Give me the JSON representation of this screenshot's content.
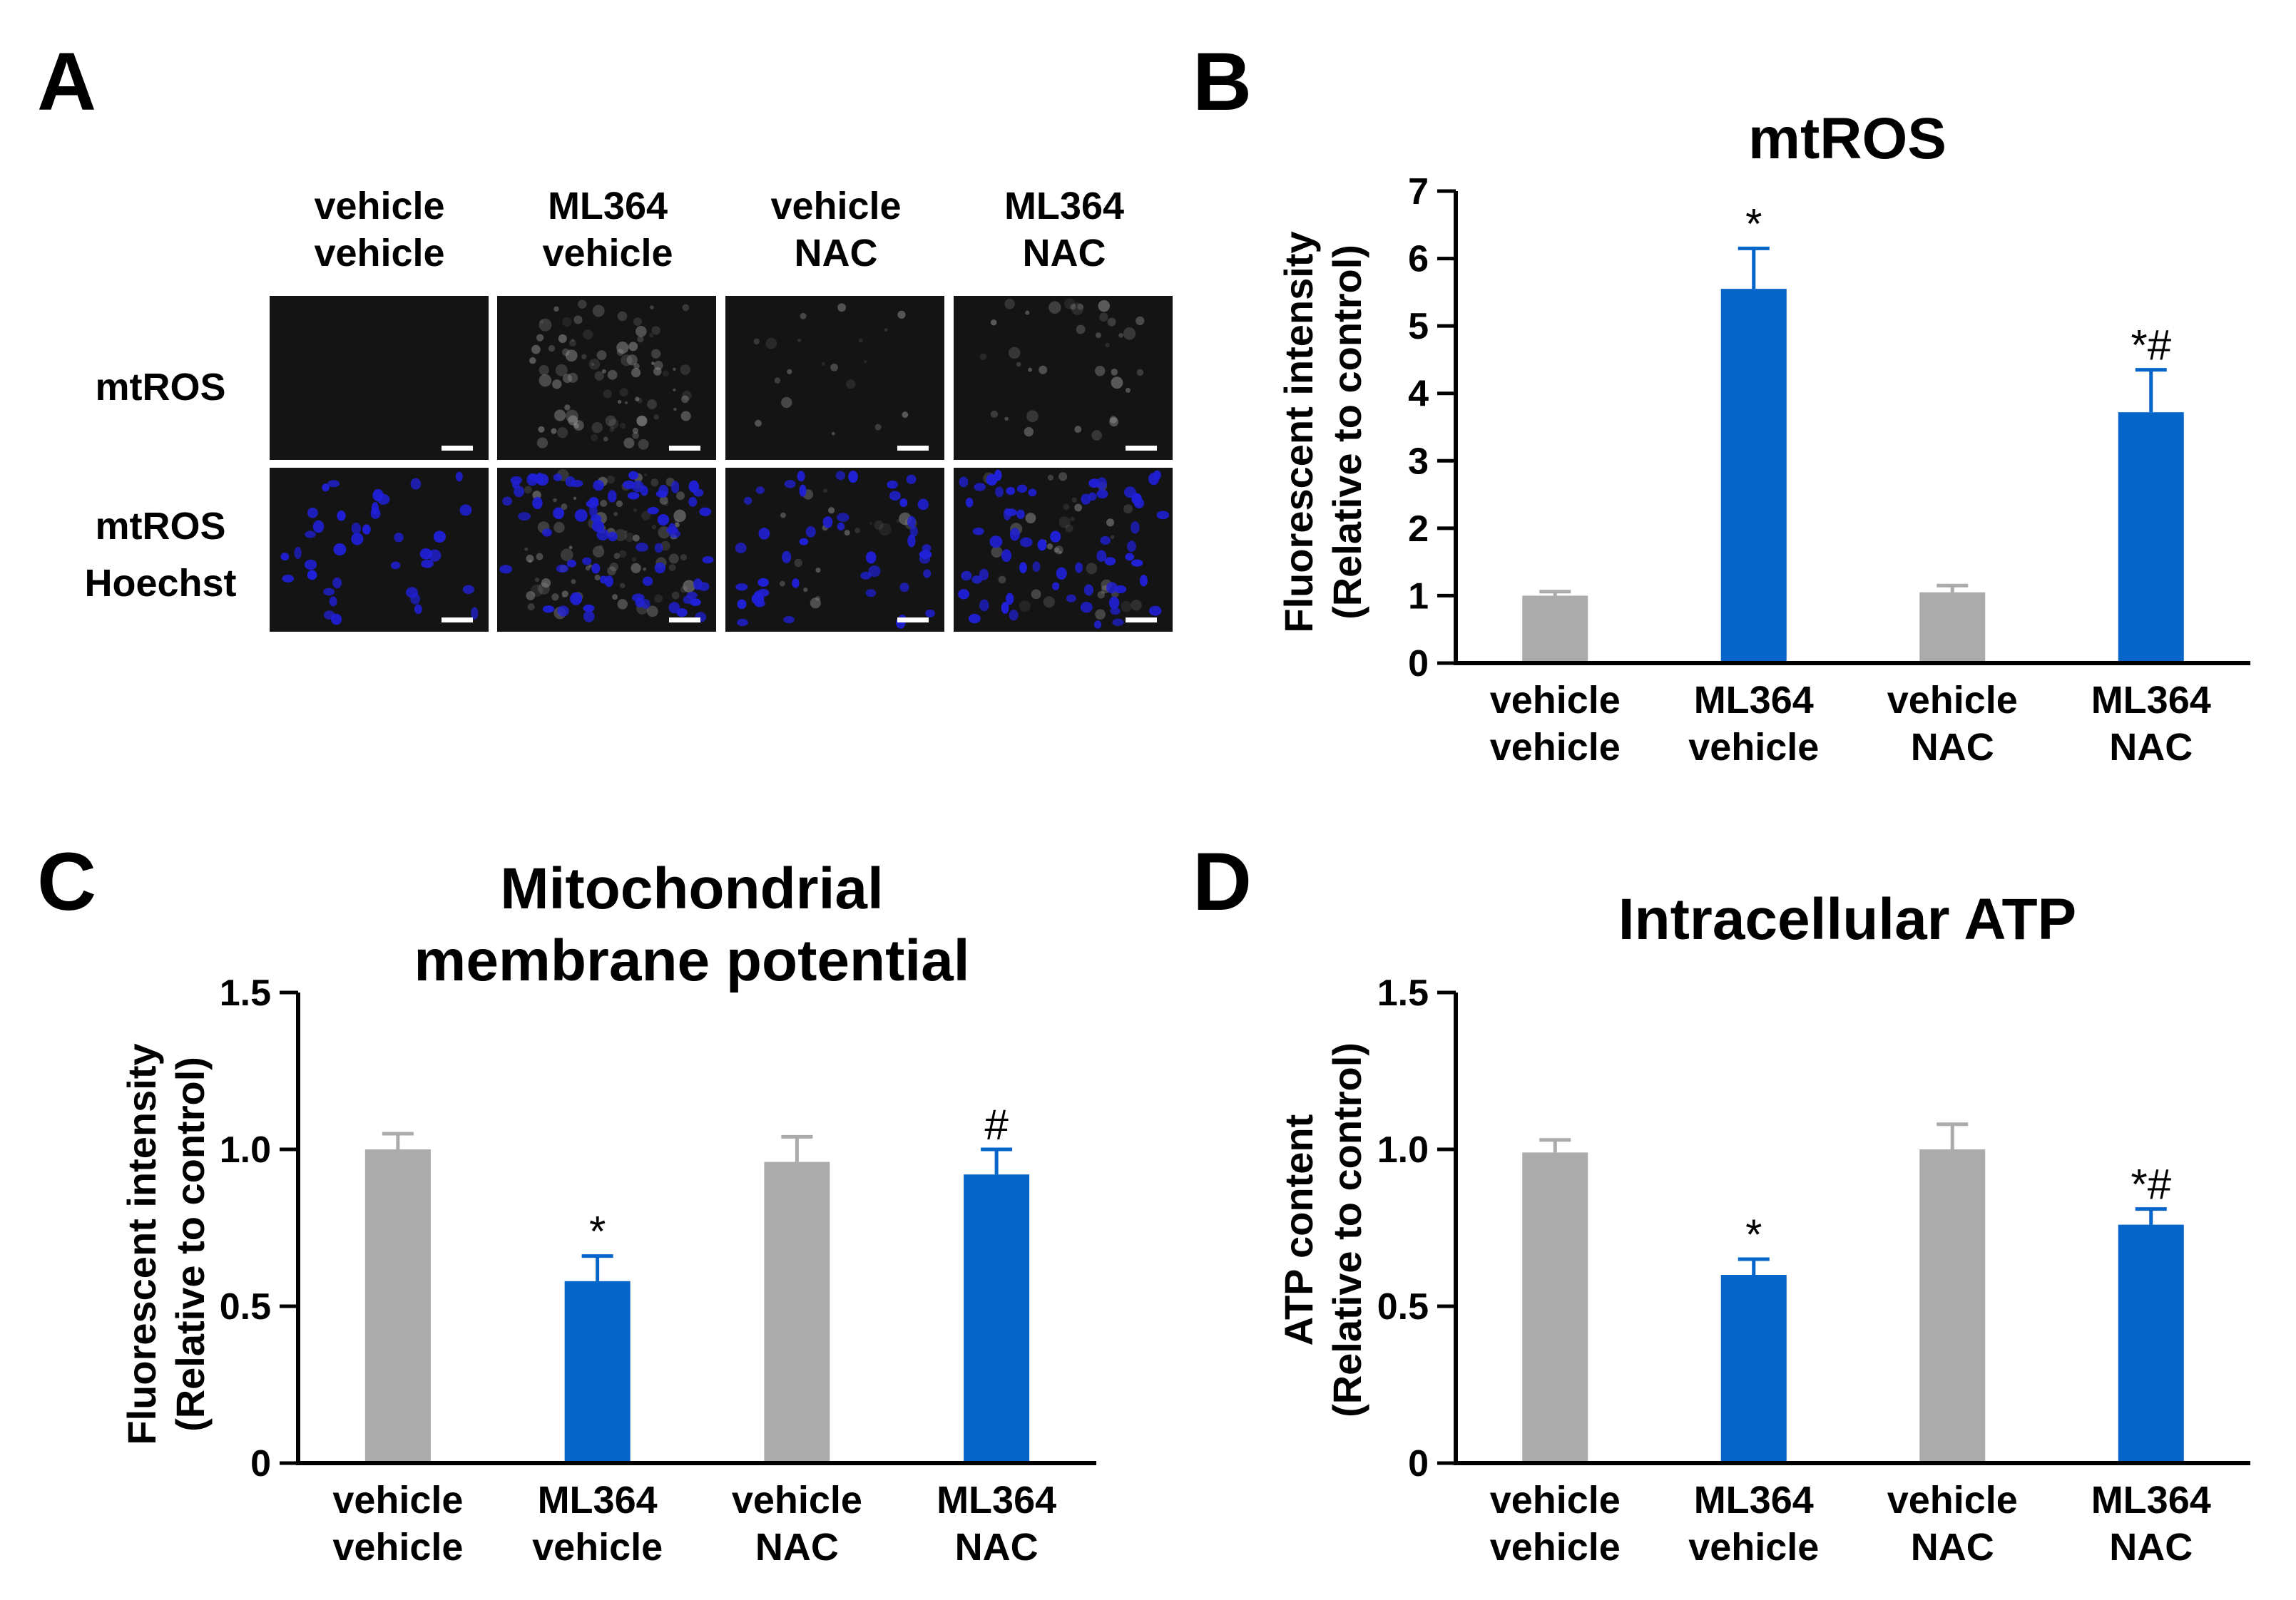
{
  "panel_a": {
    "letter": "A",
    "columns": [
      {
        "line1": "vehicle",
        "line2": "vehicle"
      },
      {
        "line1": "ML364",
        "line2": "vehicle"
      },
      {
        "line1": "vehicle",
        "line2": "NAC"
      },
      {
        "line1": "ML364",
        "line2": "NAC"
      }
    ],
    "rows": [
      {
        "line1": "mtROS",
        "line2": ""
      },
      {
        "line1": "mtROS",
        "line2": "Hoechst"
      }
    ],
    "colors": {
      "tile_bg": "#141414",
      "nuclei": "#2020d8",
      "mtros_signal": "#9a9a9a",
      "scale_bar": "#ffffff"
    }
  },
  "chart_data": [
    {
      "letter": "B",
      "type": "bar",
      "title_lines": [
        "mtROS"
      ],
      "ylabel_lines": [
        "Fluorescent intensity",
        "(Relative to control)"
      ],
      "xlabel": "",
      "categories": [
        [
          "vehicle",
          "vehicle"
        ],
        [
          "ML364",
          "vehicle"
        ],
        [
          "vehicle",
          "NAC"
        ],
        [
          "ML364",
          "NAC"
        ]
      ],
      "values": [
        1.0,
        5.55,
        1.05,
        3.72
      ],
      "errors": [
        0.06,
        0.6,
        0.1,
        0.63
      ],
      "annotations": [
        "",
        "*",
        "",
        "*#"
      ],
      "ylim": [
        0,
        7
      ],
      "yticks": [
        0,
        1,
        2,
        3,
        4,
        5,
        6,
        7
      ],
      "ytick_labels": [
        "0",
        "1",
        "2",
        "3",
        "4",
        "5",
        "6",
        "7"
      ],
      "grid": false,
      "bar_colors": [
        "#ababab",
        "#0565c8",
        "#ababab",
        "#0565c8"
      ]
    },
    {
      "letter": "C",
      "type": "bar",
      "title_lines": [
        "Mitochondrial",
        "membrane potential"
      ],
      "ylabel_lines": [
        "Fluorescent intensity",
        "(Relative to control)"
      ],
      "xlabel": "",
      "categories": [
        [
          "vehicle",
          "vehicle"
        ],
        [
          "ML364",
          "vehicle"
        ],
        [
          "vehicle",
          "NAC"
        ],
        [
          "ML364",
          "NAC"
        ]
      ],
      "values": [
        1.0,
        0.58,
        0.96,
        0.92
      ],
      "errors": [
        0.05,
        0.08,
        0.08,
        0.08
      ],
      "annotations": [
        "",
        "*",
        "",
        "#"
      ],
      "ylim": [
        0,
        1.5
      ],
      "yticks": [
        0,
        0.5,
        1.0,
        1.5
      ],
      "ytick_labels": [
        "0",
        "0.5",
        "1.0",
        "1.5"
      ],
      "grid": false,
      "bar_colors": [
        "#ababab",
        "#0565c8",
        "#ababab",
        "#0565c8"
      ]
    },
    {
      "letter": "D",
      "type": "bar",
      "title_lines": [
        "Intracellular ATP"
      ],
      "ylabel_lines": [
        "ATP content",
        "(Relative to control)"
      ],
      "xlabel": "",
      "categories": [
        [
          "vehicle",
          "vehicle"
        ],
        [
          "ML364",
          "vehicle"
        ],
        [
          "vehicle",
          "NAC"
        ],
        [
          "ML364",
          "NAC"
        ]
      ],
      "values": [
        0.99,
        0.6,
        1.0,
        0.76
      ],
      "errors": [
        0.04,
        0.05,
        0.08,
        0.05
      ],
      "annotations": [
        "",
        "*",
        "",
        "*#"
      ],
      "ylim": [
        0,
        1.5
      ],
      "yticks": [
        0,
        0.5,
        1.0,
        1.5
      ],
      "ytick_labels": [
        "0",
        "0.5",
        "1.0",
        "1.5"
      ],
      "grid": false,
      "bar_colors": [
        "#ababab",
        "#0565c8",
        "#ababab",
        "#0565c8"
      ]
    }
  ]
}
